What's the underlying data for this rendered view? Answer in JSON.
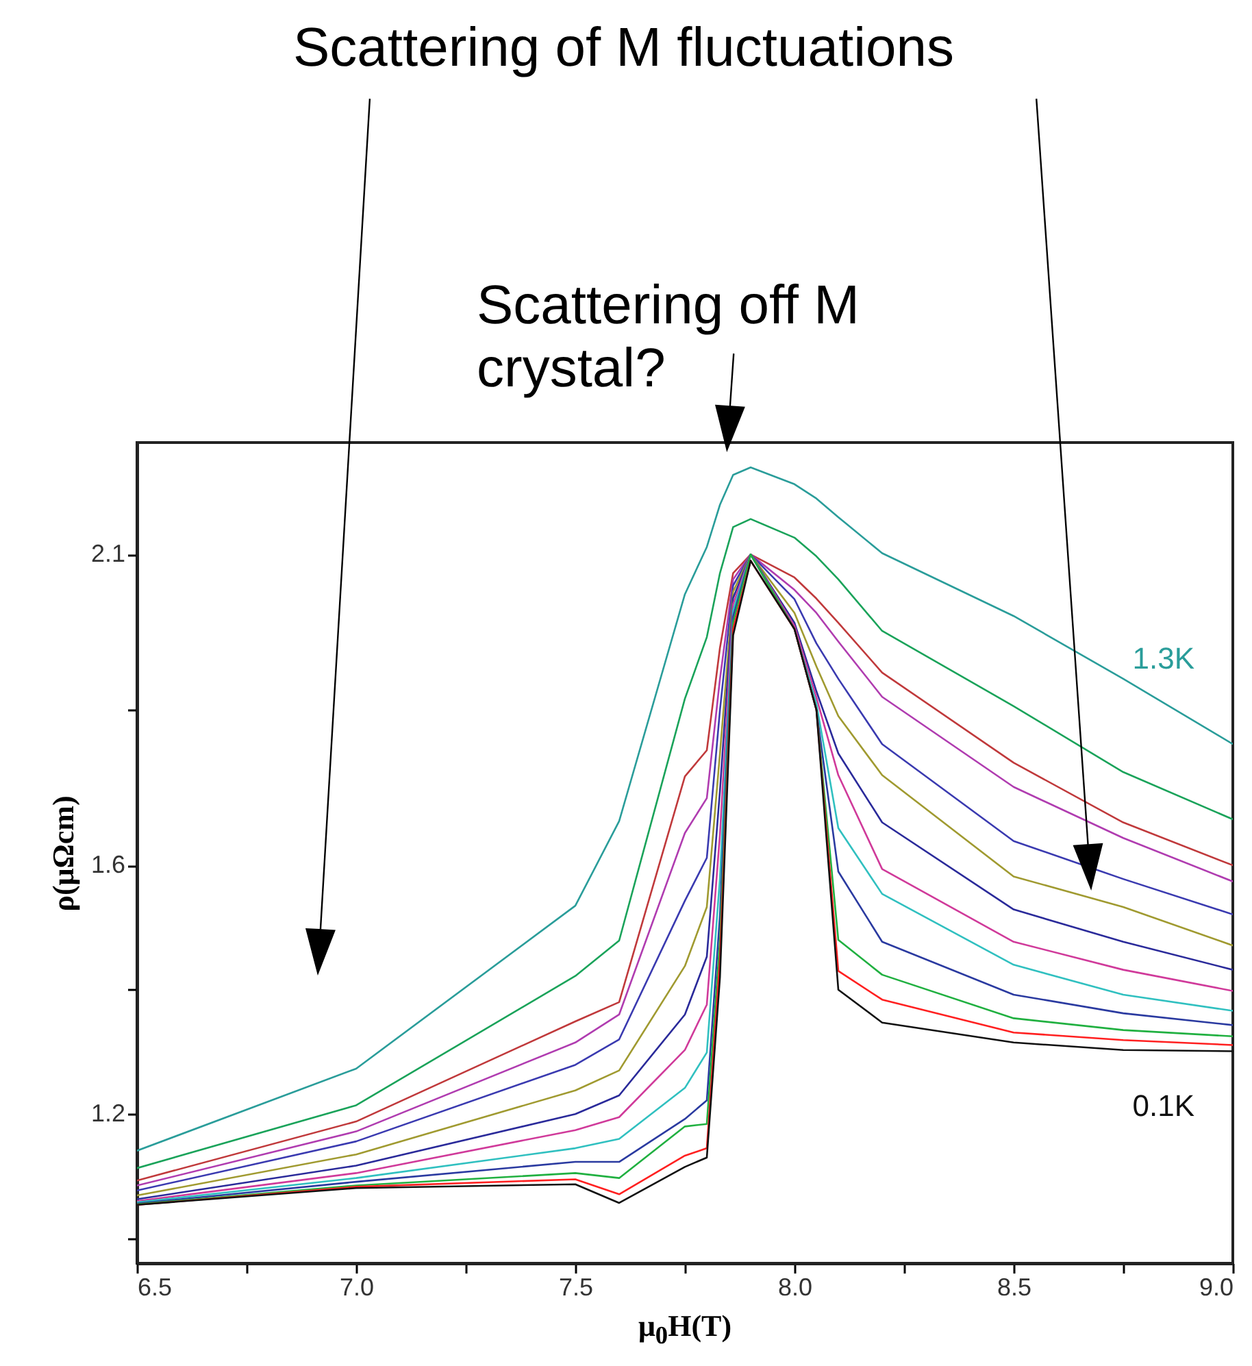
{
  "chart_data": {
    "type": "line",
    "xlabel": "μ$_{0}$H(T)",
    "ylabel": "ρ(μΩcm)",
    "annotations": [
      "Scattering of M fluctuations",
      "Scattering off M crystal?"
    ],
    "x": [
      6.5,
      7.0,
      7.5,
      7.6,
      7.75,
      7.8,
      7.83,
      7.86,
      7.9,
      8.0,
      8.05,
      8.1,
      8.2,
      8.5,
      8.75,
      9.0
    ],
    "xlim": [
      6.5,
      9.0
    ],
    "xticks": [
      6.5,
      {
        "value": 6.75,
        "label": null
      },
      {
        "value": 7,
        "label": "7.0"
      },
      {
        "value": 7.25,
        "label": null
      },
      7.5,
      {
        "value": 7.75,
        "label": null
      },
      {
        "value": 8,
        "label": "8.0"
      },
      {
        "value": 8.25,
        "label": null
      },
      8.5,
      {
        "value": 8.75,
        "label": null
      },
      {
        "value": 9,
        "label": "9.0"
      }
    ],
    "ylim": [
      0.96,
      2.28
    ],
    "yticks": [
      2.1,
      {
        "value": 1.85,
        "label": null
      },
      1.6,
      {
        "value": 1.4,
        "label": null
      },
      1.2,
      {
        "value": 1.0,
        "label": null
      }
    ],
    "grid": false,
    "legend": false,
    "marker": "none",
    "line_style": "solid",
    "series": [
      {
        "name": "1.3K",
        "color": "#2a9d9a",
        "values": [
          1.141,
          1.273,
          1.535,
          1.671,
          2.036,
          2.112,
          2.18,
          2.228,
          2.24,
          2.213,
          2.19,
          2.16,
          2.102,
          2.001,
          1.9,
          1.795
        ]
      },
      {
        "color": "#1aa35a",
        "values": [
          1.113,
          1.214,
          1.422,
          1.479,
          1.868,
          1.967,
          2.07,
          2.144,
          2.157,
          2.127,
          2.097,
          2.06,
          1.977,
          1.856,
          1.75,
          1.674
        ]
      },
      {
        "color": "#c0393b",
        "values": [
          1.093,
          1.188,
          1.349,
          1.38,
          1.743,
          1.785,
          1.95,
          2.07,
          2.1,
          2.063,
          2.029,
          1.99,
          1.91,
          1.765,
          1.669,
          1.6
        ]
      },
      {
        "color": "#b03cb0",
        "values": [
          1.085,
          1.172,
          1.315,
          1.36,
          1.652,
          1.708,
          1.9,
          2.06,
          2.1,
          2.043,
          2.006,
          1.96,
          1.871,
          1.726,
          1.644,
          1.574
        ]
      },
      {
        "color": "#3a3ab0",
        "values": [
          1.077,
          1.156,
          1.279,
          1.32,
          1.543,
          1.612,
          1.85,
          2.05,
          2.1,
          2.028,
          1.957,
          1.9,
          1.795,
          1.639,
          1.578,
          1.521
        ]
      },
      {
        "color": "#a09a30",
        "values": [
          1.069,
          1.135,
          1.238,
          1.27,
          1.438,
          1.533,
          1.78,
          2.04,
          2.1,
          2.006,
          1.92,
          1.84,
          1.745,
          1.582,
          1.533,
          1.471
        ]
      },
      {
        "color": "#2a2a9a",
        "values": [
          1.063,
          1.117,
          1.2,
          1.23,
          1.36,
          1.453,
          1.72,
          2.03,
          2.1,
          1.99,
          1.88,
          1.78,
          1.669,
          1.529,
          1.477,
          1.432
        ]
      },
      {
        "color": "#d03a9a",
        "values": [
          1.06,
          1.105,
          1.174,
          1.195,
          1.303,
          1.376,
          1.65,
          2.02,
          2.1,
          1.985,
          1.87,
          1.745,
          1.594,
          1.477,
          1.432,
          1.398
        ]
      },
      {
        "color": "#30c0c0",
        "values": [
          1.058,
          1.097,
          1.145,
          1.16,
          1.242,
          1.299,
          1.58,
          2.01,
          2.1,
          1.98,
          1.86,
          1.66,
          1.554,
          1.44,
          1.392,
          1.366
        ]
      },
      {
        "color": "#2a3aa0",
        "values": [
          1.056,
          1.091,
          1.123,
          1.123,
          1.192,
          1.222,
          1.52,
          2.0,
          2.1,
          1.98,
          1.85,
          1.59,
          1.477,
          1.392,
          1.362,
          1.343
        ]
      },
      {
        "color": "#20b040",
        "values": [
          1.055,
          1.085,
          1.105,
          1.097,
          1.18,
          1.184,
          1.48,
          1.99,
          2.1,
          1.98,
          1.85,
          1.48,
          1.424,
          1.354,
          1.335,
          1.325
        ]
      },
      {
        "color": "#ff2020",
        "values": [
          1.054,
          1.083,
          1.095,
          1.071,
          1.133,
          1.145,
          1.45,
          1.98,
          2.09,
          1.98,
          1.85,
          1.43,
          1.384,
          1.331,
          1.319,
          1.311
        ]
      },
      {
        "name": "0.1K",
        "color": "#101010",
        "values": [
          1.054,
          1.081,
          1.087,
          1.057,
          1.115,
          1.13,
          1.42,
          1.97,
          2.09,
          1.98,
          1.85,
          1.4,
          1.347,
          1.315,
          1.303,
          1.301
        ]
      }
    ]
  }
}
